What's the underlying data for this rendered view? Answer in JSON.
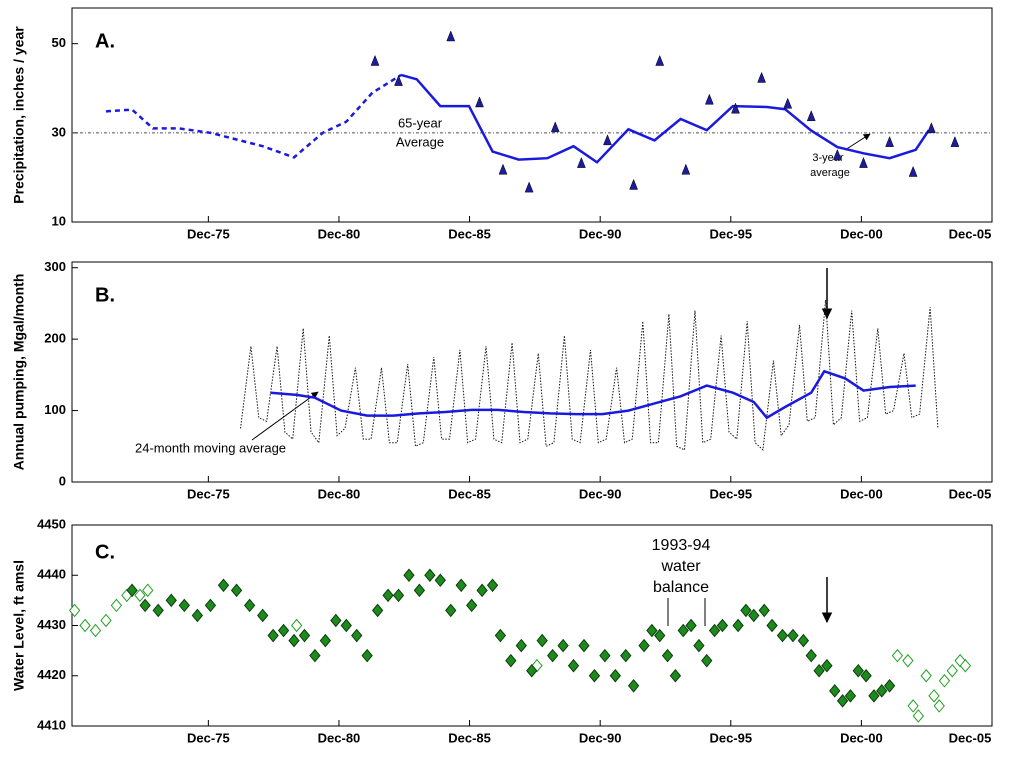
{
  "chart_data": [
    {
      "type": "line",
      "panel_label": "A.",
      "y_label": "Precipitation, inches / year",
      "xlim": [
        1970.7,
        2005.92
      ],
      "ylim": [
        10,
        58
      ],
      "yticks": [
        10,
        30,
        50
      ],
      "xticks": [
        {
          "value": 1975.92,
          "label": "Dec-75"
        },
        {
          "value": 1980.92,
          "label": "Dec-80"
        },
        {
          "value": 1985.92,
          "label": "Dec-85"
        },
        {
          "value": 1990.92,
          "label": "Dec-90"
        },
        {
          "value": 1995.92,
          "label": "Dec-95"
        },
        {
          "value": 2000.92,
          "label": "Dec-00"
        },
        {
          "value": 2005.92,
          "label": "Dec-05"
        }
      ],
      "reference_line": {
        "value": 30,
        "color": "#555555"
      },
      "annotations": [
        "65-year",
        "Average",
        "3-year",
        "average"
      ],
      "series": [
        {
          "color": "#1a1adf",
          "dash": "dashed",
          "x": [
            1972.0,
            1973.0,
            1973.8,
            1974.8,
            1976.0,
            1978.0,
            1979.2,
            1980.3,
            1981.2,
            1982.2,
            1983.3
          ],
          "values": [
            34.8,
            35.2,
            31,
            31,
            30,
            27,
            24.5,
            30,
            32.5,
            39,
            43
          ]
        },
        {
          "color": "#1a1adf",
          "dash": "solid",
          "x": [
            1983.3,
            1983.9,
            1984.8,
            1985.9,
            1986.8,
            1987.8,
            1988.9,
            1989.9,
            1990.8,
            1992.0,
            1993.0,
            1994.0,
            1995.0,
            1996.0,
            1997.3,
            1998.0,
            1999.0,
            2000.0,
            2001.0,
            2002.0,
            2003.0,
            2003.5
          ],
          "values": [
            43,
            42,
            36,
            36,
            25.8,
            24,
            24.3,
            27,
            23.4,
            30.8,
            28.3,
            33.1,
            30.6,
            36,
            35.8,
            35.3,
            30.5,
            26.8,
            25.4,
            24.3,
            26.2,
            30.6
          ]
        },
        {
          "color": "#1c1c9c",
          "marker": "triangle",
          "x": [
            1982.3,
            1983.2,
            1985.2,
            1986.3,
            1987.2,
            1988.2,
            1989.2,
            1990.2,
            1991.2,
            1992.2,
            1993.2,
            1994.2,
            1995.1,
            1996.1,
            1997.1,
            1998.1,
            1999.0,
            2000.0,
            2001.0,
            2002.0,
            2002.9,
            2003.6,
            2004.5
          ],
          "values": [
            46,
            41.5,
            51.5,
            36.7,
            21.6,
            17.6,
            31.1,
            23.1,
            28.2,
            18.2,
            46,
            21.6,
            37.3,
            35.3,
            42.2,
            36.4,
            33.6,
            24.9,
            23.1,
            27.8,
            21.1,
            30.9,
            27.8
          ]
        }
      ]
    },
    {
      "type": "line",
      "panel_label": "B.",
      "y_label": "Annual pumping, Mgal/month",
      "xlim": [
        1970.7,
        2005.92
      ],
      "ylim": [
        0,
        308
      ],
      "yticks": [
        0,
        100,
        200,
        300
      ],
      "xticks": [
        {
          "value": 1975.92,
          "label": "Dec-75"
        },
        {
          "value": 1980.92,
          "label": "Dec-80"
        },
        {
          "value": 1985.92,
          "label": "Dec-85"
        },
        {
          "value": 1990.92,
          "label": "Dec-90"
        },
        {
          "value": 1995.92,
          "label": "Dec-95"
        },
        {
          "value": 2000.92,
          "label": "Dec-00"
        },
        {
          "value": 2005.92,
          "label": "Dec-05"
        }
      ],
      "annotations": [
        "24-month moving average"
      ],
      "series": [
        {
          "color": "#111111",
          "dash": "dotted",
          "x": [
            1977.15,
            1977.55,
            1977.85,
            1978.15,
            1978.55,
            1978.85,
            1979.15,
            1979.55,
            1979.85,
            1980.15,
            1980.55,
            1980.85,
            1981.15,
            1981.55,
            1981.85,
            1982.15,
            1982.55,
            1982.85,
            1983.15,
            1983.55,
            1983.85,
            1984.15,
            1984.55,
            1984.85,
            1985.15,
            1985.55,
            1985.85,
            1986.15,
            1986.55,
            1986.85,
            1987.15,
            1987.55,
            1987.85,
            1988.15,
            1988.55,
            1988.85,
            1989.15,
            1989.55,
            1989.85,
            1990.15,
            1990.55,
            1990.85,
            1991.15,
            1991.55,
            1991.85,
            1992.15,
            1992.55,
            1992.85,
            1993.15,
            1993.55,
            1993.85,
            1994.15,
            1994.55,
            1994.85,
            1995.15,
            1995.55,
            1995.85,
            1996.15,
            1996.55,
            1996.85,
            1997.15,
            1997.55,
            1997.85,
            1998.15,
            1998.55,
            1998.85,
            1999.15,
            1999.55,
            1999.85,
            2000.15,
            2000.55,
            2000.85,
            2001.15,
            2001.55,
            2001.85,
            2002.15,
            2002.55,
            2002.85,
            2003.15,
            2003.55,
            2003.85
          ],
          "values": [
            75,
            190,
            90,
            85,
            190,
            70,
            60,
            215,
            70,
            55,
            205,
            65,
            75,
            160,
            60,
            60,
            160,
            55,
            55,
            165,
            50,
            55,
            175,
            60,
            60,
            185,
            55,
            60,
            190,
            60,
            55,
            195,
            55,
            60,
            180,
            50,
            55,
            205,
            60,
            55,
            185,
            55,
            60,
            160,
            55,
            60,
            225,
            55,
            55,
            235,
            50,
            45,
            240,
            55,
            60,
            205,
            70,
            60,
            225,
            55,
            45,
            170,
            65,
            80,
            220,
            85,
            90,
            255,
            80,
            90,
            240,
            85,
            90,
            215,
            95,
            100,
            180,
            90,
            95,
            245,
            75
          ]
        },
        {
          "color": "#1a1adf",
          "dash": "solid",
          "width": 2.5,
          "x": [
            1978.3,
            1979.3,
            1980.0,
            1981.0,
            1982.0,
            1983.0,
            1984.0,
            1985.0,
            1986.0,
            1987.0,
            1988.0,
            1989.0,
            1990.0,
            1991.0,
            1992.0,
            1993.0,
            1994.0,
            1995.0,
            1996.0,
            1996.8,
            1997.3,
            1998.0,
            1999.0,
            1999.5,
            2000.3,
            2001.0,
            2002.0,
            2003.0
          ],
          "values": [
            125,
            122,
            118,
            100,
            93,
            93,
            96,
            98,
            101,
            101,
            98,
            96,
            95,
            95,
            100,
            110,
            120,
            135,
            125,
            112,
            90,
            105,
            125,
            155,
            145,
            128,
            133,
            135
          ]
        }
      ]
    },
    {
      "type": "scatter",
      "panel_label": "C.",
      "y_label": "Water Level, ft amsl",
      "xlim": [
        1970.7,
        2005.92
      ],
      "ylim": [
        4410,
        4450
      ],
      "yticks": [
        4410,
        4420,
        4430,
        4440,
        4450
      ],
      "xticks": [
        {
          "value": 1975.92,
          "label": "Dec-75"
        },
        {
          "value": 1980.92,
          "label": "Dec-80"
        },
        {
          "value": 1985.92,
          "label": "Dec-85"
        },
        {
          "value": 1990.92,
          "label": "Dec-90"
        },
        {
          "value": 1995.92,
          "label": "Dec-95"
        },
        {
          "value": 2000.92,
          "label": "Dec-00"
        },
        {
          "value": 2005.92,
          "label": "Dec-05"
        }
      ],
      "annotations": [
        "1993-94",
        "water",
        "balance"
      ],
      "series": [
        {
          "color": "#22a022",
          "marker": "open-diamond",
          "x": [
            1970.8,
            1971.2,
            1971.6,
            1972.0,
            1972.4,
            1972.8,
            1973.3,
            1973.6,
            1979.3,
            1988.5,
            2002.3,
            2002.7,
            2002.9,
            2003.1,
            2003.4,
            2003.7,
            2003.9,
            2004.1,
            2004.4,
            2004.7,
            2004.9
          ],
          "values": [
            4433,
            4430,
            4429,
            4431,
            4434,
            4436,
            4436,
            4437,
            4430,
            4422,
            4424,
            4423,
            4414,
            4412,
            4420,
            4416,
            4414,
            4419,
            4421,
            4423,
            4422
          ]
        },
        {
          "color": "#1e8a1e",
          "marker": "diamond",
          "x": [
            1973.0,
            1973.5,
            1974.0,
            1974.5,
            1975.0,
            1975.5,
            1976.0,
            1976.5,
            1977.0,
            1977.5,
            1978.0,
            1978.4,
            1978.8,
            1979.2,
            1979.6,
            1980.0,
            1980.4,
            1980.8,
            1981.2,
            1981.6,
            1982.0,
            1982.4,
            1982.8,
            1983.2,
            1983.6,
            1984.0,
            1984.4,
            1984.8,
            1985.2,
            1985.6,
            1986.0,
            1986.4,
            1986.8,
            1987.1,
            1987.5,
            1987.9,
            1988.3,
            1988.7,
            1989.1,
            1989.5,
            1989.9,
            1990.3,
            1990.7,
            1991.1,
            1991.5,
            1991.9,
            1992.2,
            1992.6,
            1992.9,
            1993.2,
            1993.5,
            1993.8,
            1994.1,
            1994.4,
            1994.7,
            1995.0,
            1995.3,
            1995.6,
            1996.2,
            1996.5,
            1996.8,
            1997.2,
            1997.5,
            1997.9,
            1998.3,
            1998.7,
            1999.0,
            1999.3,
            1999.6,
            1999.9,
            2000.2,
            2000.5,
            2000.8,
            2001.1,
            2001.4,
            2001.7,
            2002.0
          ],
          "values": [
            4437,
            4434,
            4433,
            4435,
            4434,
            4432,
            4434,
            4438,
            4437,
            4434,
            4432,
            4428,
            4429,
            4427,
            4428,
            4424,
            4427,
            4431,
            4430,
            4428,
            4424,
            4433,
            4436,
            4436,
            4440,
            4437,
            4440,
            4439,
            4433,
            4438,
            4434,
            4437,
            4438,
            4428,
            4423,
            4426,
            4421,
            4427,
            4424,
            4426,
            4422,
            4426,
            4420,
            4424,
            4420,
            4424,
            4418,
            4426,
            4429,
            4428,
            4424,
            4420,
            4429,
            4430,
            4426,
            4423,
            4429,
            4430,
            4430,
            4433,
            4432,
            4433,
            4430,
            4428,
            4428,
            4427,
            4424,
            4421,
            4422,
            4417,
            4415,
            4416,
            4421,
            4420,
            4416,
            4417,
            4418
          ]
        }
      ]
    }
  ]
}
